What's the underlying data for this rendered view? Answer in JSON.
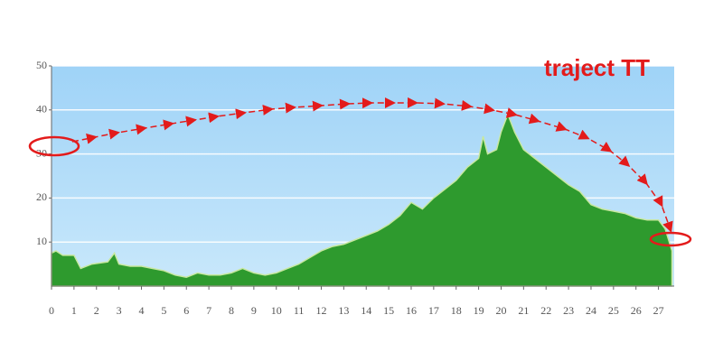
{
  "chart_data": {
    "type": "area",
    "title": "traject TT",
    "x": [
      0,
      0.2,
      0.5,
      1,
      1.3,
      1.8,
      2.5,
      2.8,
      3,
      3.5,
      4,
      4.5,
      5,
      5.5,
      6,
      6.5,
      7,
      7.5,
      8,
      8.5,
      9,
      9.5,
      10,
      10.5,
      11,
      11.5,
      12,
      12.5,
      13,
      13.5,
      14,
      14.5,
      15,
      15.5,
      16,
      16.5,
      17,
      17.5,
      18,
      18.5,
      19,
      19.2,
      19.4,
      19.8,
      20,
      20.3,
      20.6,
      21,
      21.5,
      22,
      22.5,
      23,
      23.5,
      24,
      24.5,
      25,
      25.5,
      26,
      26.5,
      27,
      27.3,
      27.6
    ],
    "values": [
      7.5,
      8,
      7,
      7,
      4,
      5,
      5.5,
      7.5,
      5,
      4.5,
      4.5,
      4,
      3.5,
      2.5,
      2,
      3,
      2.5,
      2.5,
      3,
      4,
      3,
      2.5,
      3,
      4,
      5,
      6.5,
      8,
      9,
      9.5,
      10.5,
      11.5,
      12.5,
      14,
      16,
      19,
      17.5,
      20,
      22,
      24,
      27,
      29,
      34,
      30,
      31,
      35,
      39,
      35,
      31,
      29,
      27,
      25,
      23,
      21.5,
      18.5,
      17.5,
      17,
      16.5,
      15.5,
      15,
      15,
      13,
      8
    ],
    "color": "#2e9a2e",
    "xlim": [
      0,
      27.7
    ],
    "ylim": [
      0,
      50
    ],
    "xticks": [
      0,
      1,
      2,
      3,
      4,
      5,
      6,
      7,
      8,
      9,
      10,
      11,
      12,
      13,
      14,
      15,
      16,
      17,
      18,
      19,
      20,
      21,
      22,
      23,
      24,
      25,
      26,
      27
    ],
    "yticks": [
      10,
      20,
      30,
      40,
      50
    ],
    "grid": true
  }
}
